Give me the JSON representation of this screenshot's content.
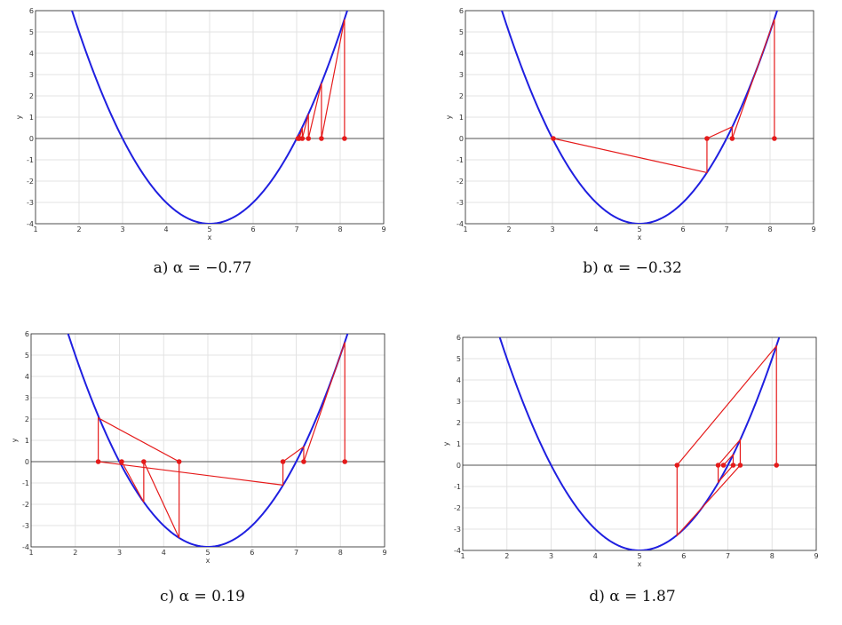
{
  "chart_data": [
    {
      "type": "line",
      "caption": "a) α = −0.77",
      "xlabel": "x",
      "ylabel": "y",
      "xlim": [
        1,
        9
      ],
      "ylim": [
        -4,
        6
      ],
      "xticks": [
        "1",
        "2",
        "3",
        "4",
        "5",
        "6",
        "7",
        "8",
        "9"
      ],
      "yticks": [
        "-4",
        "-3",
        "-2",
        "-1",
        "0",
        "1",
        "2",
        "3",
        "4",
        "5",
        "6"
      ],
      "grid": true,
      "curve": {
        "color": "#1f1fe0",
        "function": "y = (x - 5)^2 - 4"
      },
      "iteration_path": {
        "color": "#e51a1a",
        "points": [
          [
            8.1,
            0
          ],
          [
            8.1,
            5.6
          ],
          [
            7.57,
            0
          ],
          [
            7.57,
            2.6
          ],
          [
            7.27,
            0
          ],
          [
            7.27,
            1.15
          ],
          [
            7.13,
            0
          ],
          [
            7.13,
            0.5
          ],
          [
            7.06,
            0
          ],
          [
            7.06,
            0.2
          ],
          [
            7.03,
            0
          ]
        ]
      },
      "markers": [
        [
          8.1,
          0
        ],
        [
          7.57,
          0
        ],
        [
          7.27,
          0
        ],
        [
          7.13,
          0
        ],
        [
          7.06,
          0
        ],
        [
          7.03,
          0
        ]
      ]
    },
    {
      "type": "line",
      "caption": "b) α = −0.32",
      "xlabel": "x",
      "ylabel": "y",
      "xlim": [
        1,
        9
      ],
      "ylim": [
        -4,
        6
      ],
      "xticks": [
        "1",
        "2",
        "3",
        "4",
        "5",
        "6",
        "7",
        "8",
        "9"
      ],
      "yticks": [
        "-4",
        "-3",
        "-2",
        "-1",
        "0",
        "1",
        "2",
        "3",
        "4",
        "5",
        "6"
      ],
      "grid": true,
      "curve": {
        "color": "#1f1fe0",
        "function": "y = (x - 5)^2 - 4"
      },
      "iteration_path": {
        "color": "#e51a1a",
        "points": [
          [
            8.1,
            0
          ],
          [
            8.1,
            5.6
          ],
          [
            7.13,
            0
          ],
          [
            7.13,
            0.55
          ],
          [
            6.55,
            0
          ],
          [
            6.55,
            -1.6
          ],
          [
            3.02,
            0
          ]
        ]
      },
      "markers": [
        [
          8.1,
          0
        ],
        [
          7.13,
          0
        ],
        [
          6.55,
          0
        ],
        [
          3.02,
          0
        ]
      ]
    },
    {
      "type": "line",
      "caption": "c) α = 0.19",
      "xlabel": "x",
      "ylabel": "y",
      "xlim": [
        1,
        9
      ],
      "ylim": [
        -4,
        6
      ],
      "xticks": [
        "1",
        "2",
        "3",
        "4",
        "5",
        "6",
        "7",
        "8",
        "9"
      ],
      "yticks": [
        "-4",
        "-3",
        "-2",
        "-1",
        "0",
        "1",
        "2",
        "3",
        "4",
        "5",
        "6"
      ],
      "grid": true,
      "curve": {
        "color": "#1f1fe0",
        "function": "y = (x - 5)^2 - 4"
      },
      "iteration_path": {
        "color": "#e51a1a",
        "points": [
          [
            8.1,
            0
          ],
          [
            8.1,
            5.6
          ],
          [
            7.17,
            0
          ],
          [
            7.17,
            0.7
          ],
          [
            6.7,
            0
          ],
          [
            6.7,
            -1.1
          ],
          [
            2.52,
            0
          ],
          [
            2.52,
            2.05
          ],
          [
            4.35,
            0
          ],
          [
            4.35,
            -3.58
          ],
          [
            3.55,
            0
          ],
          [
            3.55,
            -1.9
          ],
          [
            3.05,
            0
          ]
        ]
      },
      "markers": [
        [
          8.1,
          0
        ],
        [
          7.17,
          0
        ],
        [
          6.7,
          0
        ],
        [
          2.52,
          0
        ],
        [
          4.35,
          0
        ],
        [
          3.55,
          0
        ],
        [
          3.05,
          0
        ]
      ]
    },
    {
      "type": "line",
      "caption": "d) α = 1.87",
      "xlabel": "x",
      "ylabel": "y",
      "xlim": [
        1,
        9
      ],
      "ylim": [
        -4,
        6
      ],
      "xticks": [
        "1",
        "2",
        "3",
        "4",
        "5",
        "6",
        "7",
        "8",
        "9"
      ],
      "yticks": [
        "-4",
        "-3",
        "-2",
        "-1",
        "0",
        "1",
        "2",
        "3",
        "4",
        "5",
        "6"
      ],
      "grid": true,
      "curve": {
        "color": "#1f1fe0",
        "function": "y = (x - 5)^2 - 4"
      },
      "iteration_path": {
        "color": "#e51a1a",
        "points": [
          [
            8.1,
            0
          ],
          [
            8.1,
            5.6
          ],
          [
            5.85,
            0
          ],
          [
            5.85,
            -3.3
          ],
          [
            7.28,
            0
          ],
          [
            7.28,
            1.2
          ],
          [
            6.78,
            0
          ],
          [
            6.78,
            -0.8
          ],
          [
            7.12,
            0
          ],
          [
            7.12,
            0.5
          ],
          [
            6.9,
            0
          ]
        ]
      },
      "markers": [
        [
          8.1,
          0
        ],
        [
          5.85,
          0
        ],
        [
          7.28,
          0
        ],
        [
          6.78,
          0
        ],
        [
          7.12,
          0
        ],
        [
          6.9,
          0
        ]
      ]
    }
  ]
}
